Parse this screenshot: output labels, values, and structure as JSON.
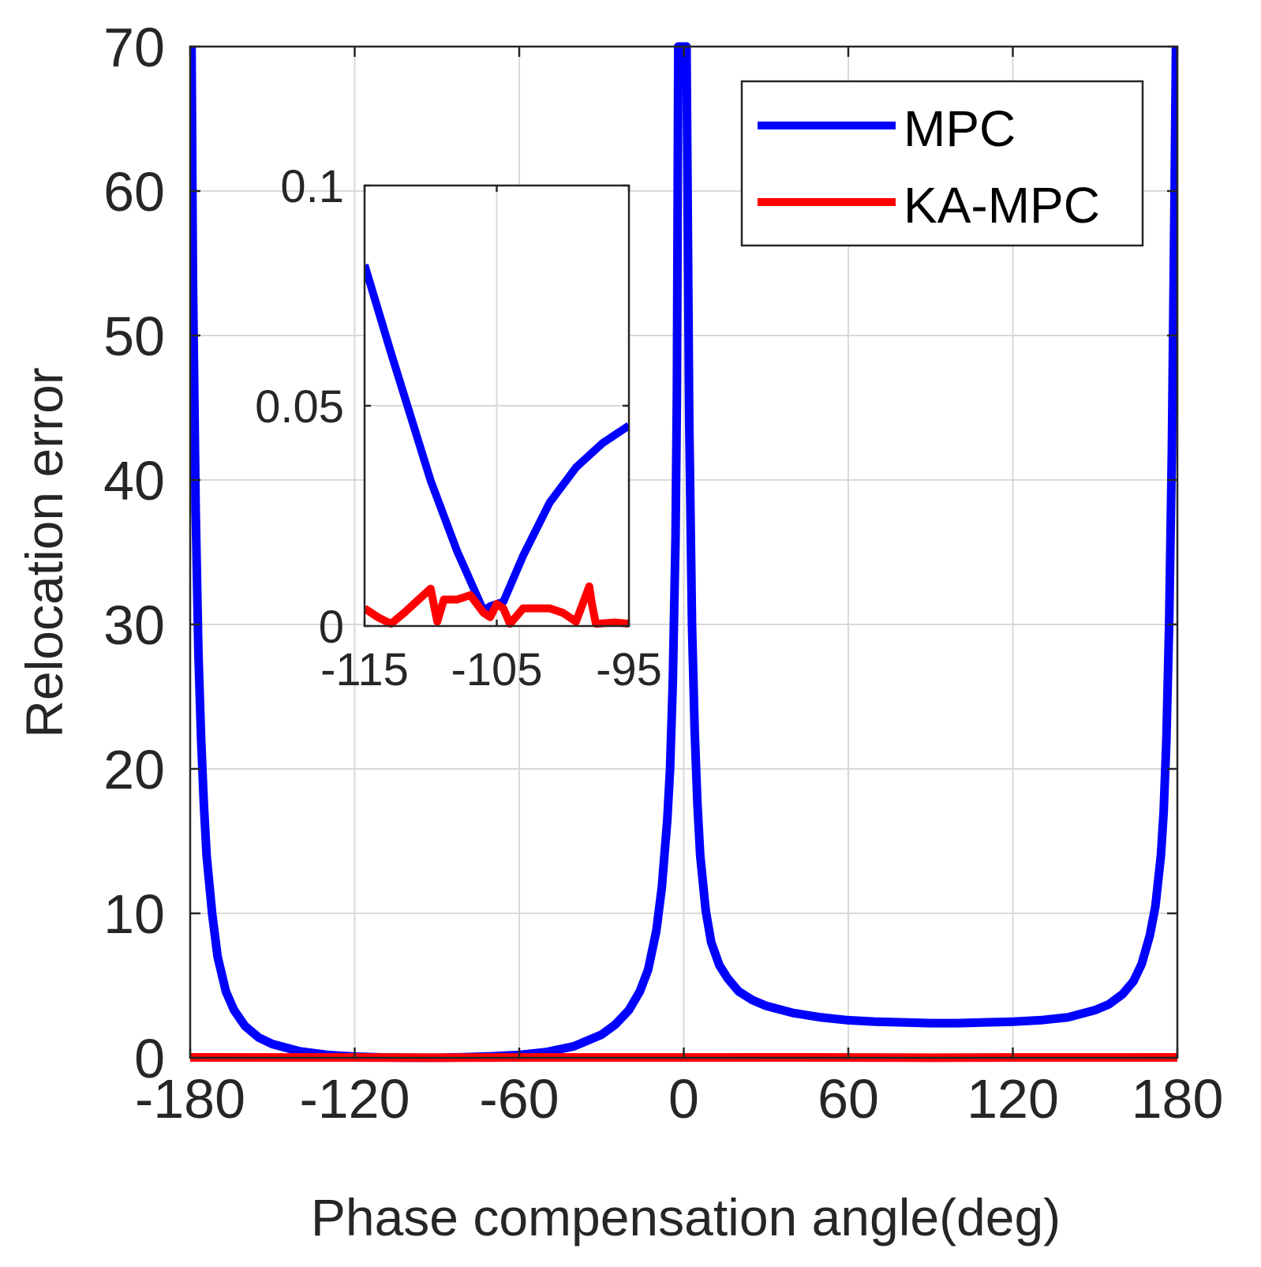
{
  "chart_data": {
    "type": "line",
    "xlabel": "Phase compensation angle(deg)",
    "ylabel": "Relocation error",
    "xlim": [
      -180,
      180
    ],
    "ylim": [
      0,
      70
    ],
    "xticks": [
      -180,
      -120,
      -60,
      0,
      60,
      120,
      180
    ],
    "yticks": [
      0,
      10,
      20,
      30,
      40,
      50,
      60,
      70
    ],
    "xtick_labels": [
      "-180",
      "-120",
      "-60",
      "0",
      "60",
      "120",
      "180"
    ],
    "ytick_labels": [
      "0",
      "10",
      "20",
      "30",
      "40",
      "50",
      "60",
      "70"
    ],
    "grid": true,
    "legend_position": "top-right",
    "series": [
      {
        "name": "MPC",
        "color": "#0000ff",
        "x": [
          -179.5,
          -179,
          -178,
          -177,
          -176,
          -175,
          -174,
          -172,
          -170,
          -167,
          -164,
          -160,
          -155,
          -150,
          -140,
          -130,
          -120,
          -110,
          -100,
          -90,
          -80,
          -70,
          -60,
          -50,
          -40,
          -30,
          -25,
          -20,
          -16,
          -13,
          -10,
          -8,
          -6,
          -5,
          -4,
          -3,
          -2.5,
          -2,
          1,
          2,
          3,
          4,
          5,
          6,
          8,
          10,
          13,
          16,
          20,
          25,
          30,
          40,
          50,
          60,
          70,
          80,
          90,
          100,
          110,
          120,
          130,
          140,
          150,
          155,
          160,
          164,
          167,
          170,
          172,
          174,
          175,
          176,
          177,
          178,
          179,
          179.5
        ],
        "y": [
          70,
          54,
          38,
          28,
          22,
          17.5,
          14,
          10,
          7,
          4.6,
          3.3,
          2.2,
          1.4,
          0.95,
          0.45,
          0.2,
          0.08,
          0.03,
          0.01,
          0.01,
          0.04,
          0.1,
          0.2,
          0.4,
          0.8,
          1.6,
          2.3,
          3.3,
          4.6,
          6.1,
          8.8,
          11.8,
          16.5,
          20,
          26,
          36,
          46,
          70,
          70,
          44,
          30,
          22.5,
          17.5,
          14,
          10.2,
          8,
          6.4,
          5.5,
          4.6,
          4,
          3.6,
          3.1,
          2.8,
          2.6,
          2.5,
          2.45,
          2.4,
          2.4,
          2.45,
          2.5,
          2.6,
          2.8,
          3.3,
          3.7,
          4.4,
          5.3,
          6.5,
          8.5,
          10.5,
          14,
          17,
          22,
          30,
          42,
          60,
          70
        ]
      },
      {
        "name": "KA-MPC",
        "color": "#ff0000",
        "x": [
          -180,
          -150,
          -120,
          -90,
          -60,
          -30,
          0,
          30,
          60,
          90,
          120,
          150,
          180
        ],
        "y": [
          0.03,
          0.02,
          0.02,
          0.01,
          0.02,
          0.02,
          0.02,
          0.03,
          0.02,
          0.01,
          0.02,
          0.02,
          0.03
        ]
      }
    ],
    "inset": {
      "xlim": [
        -115,
        -95
      ],
      "ylim": [
        0,
        0.1
      ],
      "xticks": [
        -115,
        -105,
        -95
      ],
      "yticks": [
        0,
        0.05,
        0.1
      ],
      "xtick_labels": [
        "-115",
        "-105",
        "-95"
      ],
      "ytick_labels": [
        "0",
        "0.05",
        "0.1"
      ],
      "series": [
        {
          "name": "MPC",
          "color": "#0000ff",
          "x": [
            -115,
            -113,
            -110,
            -108,
            -106,
            -105.5,
            -104.5,
            -103,
            -101,
            -99,
            -97,
            -95
          ],
          "y": [
            0.082,
            0.062,
            0.033,
            0.017,
            0.0035,
            0.0045,
            0.0055,
            0.016,
            0.028,
            0.036,
            0.0415,
            0.0455
          ]
        },
        {
          "name": "KA-MPC",
          "color": "#ff0000",
          "x": [
            -115,
            -114,
            -113,
            -112,
            -110,
            -109.5,
            -109,
            -108,
            -107,
            -106,
            -105.5,
            -105,
            -104.5,
            -104,
            -103,
            -102,
            -101,
            -100,
            -99,
            -98,
            -97.8,
            -97.5,
            -96,
            -95
          ],
          "y": [
            0.004,
            0.002,
            0.0005,
            0.003,
            0.0085,
            0.001,
            0.006,
            0.006,
            0.007,
            0.003,
            0.002,
            0.005,
            0.004,
            0.0005,
            0.004,
            0.004,
            0.004,
            0.003,
            0.001,
            0.009,
            0.005,
            0.0005,
            0.0008,
            0.0005
          ]
        }
      ]
    }
  }
}
